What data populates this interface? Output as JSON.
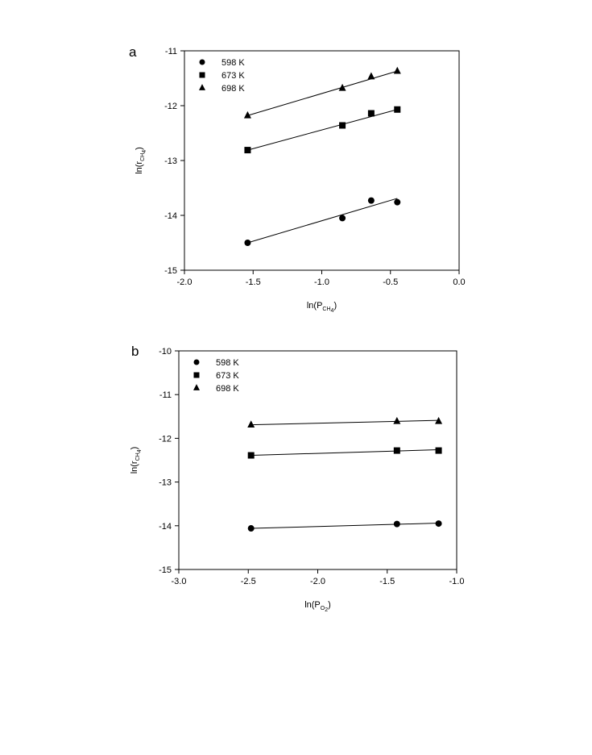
{
  "chart_data": [
    {
      "type": "scatter",
      "panel_label": "a",
      "xlabel": {
        "main": "ln(P",
        "sub": "CH",
        "sub2": "4",
        "close": ")"
      },
      "ylabel": {
        "main": "ln(r",
        "sub": "CH",
        "sub2": "4",
        "close": ")"
      },
      "xlim": [
        -2.0,
        0.0
      ],
      "ylim": [
        -15,
        -11
      ],
      "xticks": [
        "-2.0",
        "-1.5",
        "-1.0",
        "-0.5",
        "0.0"
      ],
      "xtick_values": [
        -2.0,
        -1.5,
        -1.0,
        -0.5,
        0.0
      ],
      "yticks": [
        "-11",
        "-12",
        "-13",
        "-14",
        "-15"
      ],
      "ytick_values": [
        -11,
        -12,
        -13,
        -14,
        -15
      ],
      "legend_position": "top-left",
      "grid": false,
      "series": [
        {
          "name": "598 K",
          "marker": "circle",
          "x": [
            -1.54,
            -0.85,
            -0.64,
            -0.45
          ],
          "y": [
            -14.5,
            -14.05,
            -13.73,
            -13.76
          ],
          "fit": [
            [
              -1.54,
              -14.5
            ],
            [
              -0.45,
              -13.69
            ]
          ]
        },
        {
          "name": "673 K",
          "marker": "square",
          "x": [
            -1.54,
            -0.85,
            -0.64,
            -0.45
          ],
          "y": [
            -12.81,
            -12.36,
            -12.14,
            -12.07
          ],
          "fit": [
            [
              -1.54,
              -12.81
            ],
            [
              -0.45,
              -12.07
            ]
          ]
        },
        {
          "name": "698 K",
          "marker": "triangle",
          "x": [
            -1.54,
            -0.85,
            -0.64,
            -0.45
          ],
          "y": [
            -12.18,
            -11.68,
            -11.47,
            -11.37
          ],
          "fit": [
            [
              -1.54,
              -12.18
            ],
            [
              -0.45,
              -11.37
            ]
          ]
        }
      ]
    },
    {
      "type": "scatter",
      "panel_label": "b",
      "xlabel": {
        "main": "ln(P",
        "sub": "O",
        "sub2": "2",
        "close": ")"
      },
      "ylabel": {
        "main": "ln(r",
        "sub": "CH",
        "sub2": "4",
        "close": ")"
      },
      "xlim": [
        -3.0,
        -1.0
      ],
      "ylim": [
        -15,
        -10
      ],
      "xticks": [
        "-3.0",
        "-2.5",
        "-2.0",
        "-1.5",
        "-1.0"
      ],
      "xtick_values": [
        -3.0,
        -2.5,
        -2.0,
        -1.5,
        -1.0
      ],
      "yticks": [
        "-10",
        "-11",
        "-12",
        "-13",
        "-14",
        "-15"
      ],
      "ytick_values": [
        -10,
        -11,
        -12,
        -13,
        -14,
        -15
      ],
      "legend_position": "top-left",
      "grid": false,
      "series": [
        {
          "name": "598 K",
          "marker": "circle",
          "x": [
            -2.48,
            -1.43,
            -1.13
          ],
          "y": [
            -14.06,
            -13.96,
            -13.95
          ],
          "fit": [
            [
              -2.48,
              -14.06
            ],
            [
              -1.13,
              -13.94
            ]
          ]
        },
        {
          "name": "673 K",
          "marker": "square",
          "x": [
            -2.48,
            -1.43,
            -1.13
          ],
          "y": [
            -12.39,
            -12.28,
            -12.28
          ],
          "fit": [
            [
              -2.48,
              -12.39
            ],
            [
              -1.13,
              -12.26
            ]
          ]
        },
        {
          "name": "698 K",
          "marker": "triangle",
          "x": [
            -2.48,
            -1.43,
            -1.13
          ],
          "y": [
            -11.69,
            -11.61,
            -11.61
          ],
          "fit": [
            [
              -2.48,
              -11.69
            ],
            [
              -1.13,
              -11.59
            ]
          ]
        }
      ]
    }
  ]
}
